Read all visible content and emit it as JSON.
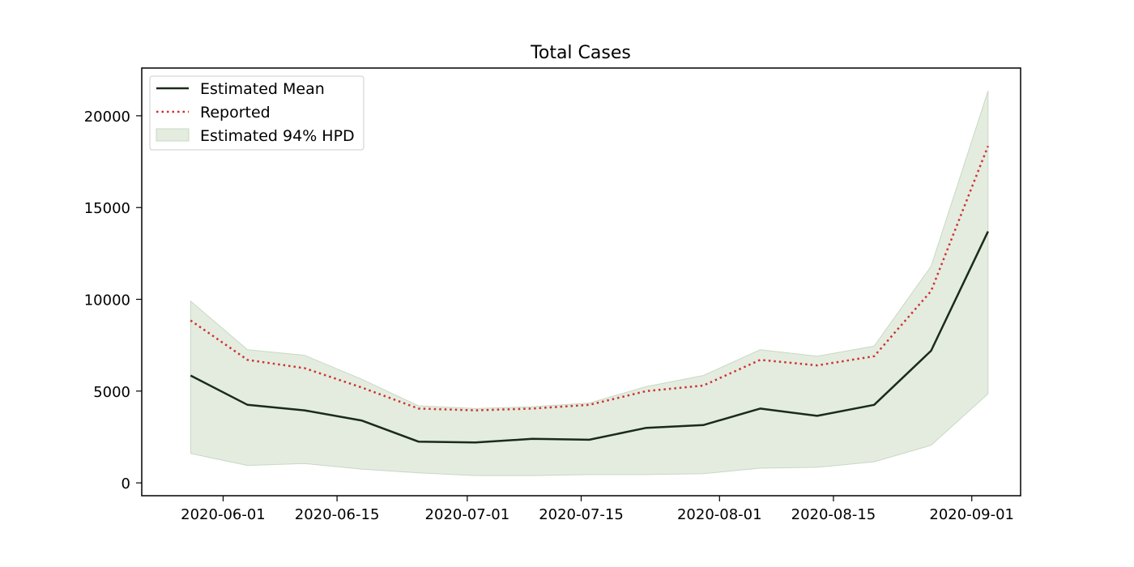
{
  "chart_data": {
    "type": "line",
    "title": "Total Cases",
    "xlabel": "",
    "ylabel": "",
    "x": [
      "2020-05-28",
      "2020-06-04",
      "2020-06-11",
      "2020-06-18",
      "2020-06-25",
      "2020-07-02",
      "2020-07-09",
      "2020-07-16",
      "2020-07-23",
      "2020-07-30",
      "2020-08-06",
      "2020-08-13",
      "2020-08-20",
      "2020-08-27",
      "2020-09-03"
    ],
    "xlim": [
      "2020-05-22",
      "2020-09-07"
    ],
    "ylim": [
      -700,
      22600
    ],
    "x_ticks": [
      "2020-06-01",
      "2020-06-15",
      "2020-07-01",
      "2020-07-15",
      "2020-08-01",
      "2020-08-15",
      "2020-09-01"
    ],
    "y_ticks": [
      0,
      5000,
      10000,
      15000,
      20000
    ],
    "grid": false,
    "legend_position": "top-left",
    "series": [
      {
        "name": "Estimated Mean",
        "style": "solid",
        "color": "#1a2b1a",
        "values": [
          5850,
          4250,
          3950,
          3400,
          2250,
          2200,
          2400,
          2350,
          3000,
          3150,
          4050,
          3650,
          4250,
          7200,
          13700
        ]
      },
      {
        "name": "Reported",
        "style": "dotted",
        "color": "#cc3333",
        "values": [
          8850,
          6700,
          6250,
          5200,
          4050,
          3950,
          4050,
          4250,
          5000,
          5300,
          6700,
          6400,
          6900,
          10450,
          18350
        ]
      }
    ],
    "band": {
      "name": "Estimated 94% HPD",
      "color": "#e4ecdf",
      "edge": "#c9d8c3",
      "lower": [
        1600,
        950,
        1050,
        750,
        550,
        400,
        400,
        450,
        450,
        500,
        800,
        850,
        1150,
        2050,
        4850
      ],
      "upper": [
        9900,
        7250,
        6950,
        5650,
        4200,
        4050,
        4150,
        4350,
        5250,
        5850,
        7250,
        6900,
        7450,
        11800,
        21350
      ]
    }
  }
}
